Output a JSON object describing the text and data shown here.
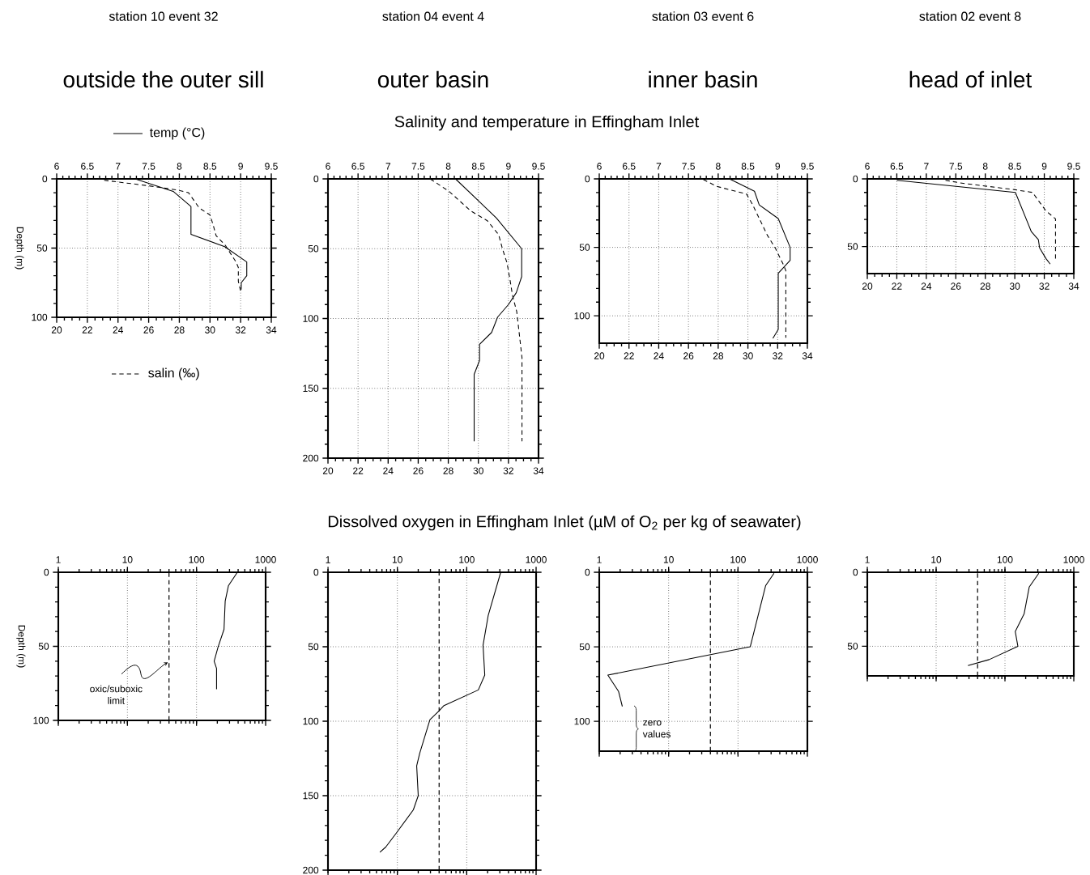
{
  "chart_data": [
    {
      "type": "line",
      "title": "station 10 event 32",
      "subtitle": "outside the outer sill",
      "ylabel": "Depth (m)",
      "annotations": [
        "Salinity and temperature in Effingham Inlet"
      ],
      "xlim": [
        20,
        34
      ],
      "xticks": [
        20,
        22,
        24,
        26,
        28,
        30,
        32,
        34
      ],
      "x2lim": [
        6,
        9.5
      ],
      "x2ticks": [
        6,
        6.5,
        7,
        7.5,
        8,
        8.5,
        9,
        9.5
      ],
      "ylim": [
        100,
        0
      ],
      "yticks": [
        0,
        50,
        100
      ],
      "grid": true,
      "legend": "left",
      "series": [
        {
          "name": "temp (°C)",
          "color": "#000000",
          "line_style": "solid",
          "axis": "x2",
          "x": [
            7.28,
            7.9,
            8.19,
            8.19,
            8.74,
            9.1,
            9.1,
            9.01,
            9.01
          ],
          "values": [
            0,
            9,
            20,
            40,
            49,
            60,
            70,
            75,
            80
          ]
        },
        {
          "name": "salin (‰)",
          "color": "#000000",
          "line_style": "dashed",
          "x": [
            23.1,
            26.0,
            27.85,
            28.6,
            29.3,
            30.0,
            30.2,
            30.4,
            31.0,
            31.7,
            31.85,
            31.85,
            32.0
          ],
          "values": [
            1,
            5,
            8,
            10,
            21,
            26,
            33,
            41,
            48,
            60,
            64,
            74,
            81
          ]
        }
      ]
    },
    {
      "type": "line",
      "title": "station 04 event 4",
      "subtitle": "outer basin",
      "xlim": [
        20,
        34
      ],
      "xticks": [
        20,
        22,
        24,
        26,
        28,
        30,
        32,
        34
      ],
      "x2lim": [
        6,
        9.5
      ],
      "x2ticks": [
        6,
        6.5,
        7,
        7.5,
        8,
        8.5,
        9,
        9.5
      ],
      "ylim": [
        200,
        0
      ],
      "yticks": [
        0,
        50,
        100,
        150,
        200
      ],
      "grid": true,
      "series": [
        {
          "color": "#000000",
          "line_style": "solid",
          "axis": "x2",
          "x": [
            8.12,
            8.52,
            8.8,
            9.22,
            9.22,
            9.13,
            9.0,
            8.82,
            8.72,
            8.52,
            8.52,
            8.43,
            8.43
          ],
          "values": [
            0,
            16.5,
            28,
            50,
            70,
            81.5,
            90,
            99,
            110,
            118.5,
            130,
            140,
            188
          ]
        },
        {
          "color": "#000000",
          "line_style": "dashed",
          "x": [
            26.8,
            28.06,
            29.5,
            30.6,
            31.35,
            31.6,
            31.9,
            32.1,
            32.27,
            32.55,
            32.7,
            32.9,
            32.9
          ],
          "values": [
            0,
            9,
            23,
            30,
            40,
            50,
            60,
            72,
            83.5,
            95,
            109,
            128,
            188
          ]
        }
      ]
    },
    {
      "type": "line",
      "title": "station 03 event 6",
      "subtitle": "inner basin",
      "xlim": [
        20,
        34
      ],
      "xticks": [
        20,
        22,
        24,
        26,
        28,
        30,
        32,
        34
      ],
      "x2lim": [
        6,
        9.5
      ],
      "x2ticks": [
        6,
        6.5,
        7,
        7.5,
        8,
        8.5,
        9,
        9.5
      ],
      "ylim": [
        120,
        0
      ],
      "yticks": [
        0,
        50,
        100
      ],
      "grid": true,
      "series": [
        {
          "color": "#000000",
          "line_style": "solid",
          "axis": "x2",
          "x": [
            8.19,
            8.61,
            8.69,
            9.01,
            9.21,
            9.21,
            9.01,
            9.01,
            8.92
          ],
          "values": [
            0,
            9,
            19,
            29,
            50,
            59.5,
            69,
            110,
            116.5
          ]
        },
        {
          "color": "#000000",
          "line_style": "dashed",
          "x": [
            27.0,
            27.9,
            29.9,
            30.3,
            31.3,
            31.85,
            32.4,
            32.55,
            32.55
          ],
          "values": [
            0.5,
            5.5,
            11,
            18.5,
            41,
            50.7,
            63,
            67,
            116
          ]
        }
      ]
    },
    {
      "type": "line",
      "title": "station 02 event 8",
      "subtitle": "head of inlet",
      "xlim": [
        20,
        34
      ],
      "xticks": [
        20,
        22,
        24,
        26,
        28,
        30,
        32,
        34
      ],
      "x2lim": [
        6,
        9.5
      ],
      "x2ticks": [
        6,
        6.5,
        7,
        7.5,
        8,
        8.5,
        9,
        9.5
      ],
      "ylim": [
        70,
        0
      ],
      "yticks": [
        0,
        50
      ],
      "grid": true,
      "series": [
        {
          "color": "#000000",
          "line_style": "solid",
          "axis": "x2",
          "x": [
            6.5,
            8.51,
            8.78,
            8.9,
            8.92,
            9.03,
            9.1
          ],
          "values": [
            1,
            10,
            39,
            45,
            51,
            59,
            63
          ]
        },
        {
          "color": "#000000",
          "line_style": "dashed",
          "x": [
            25.3,
            26.3,
            30.0,
            31.2,
            32.1,
            32.76,
            32.76
          ],
          "values": [
            1,
            3,
            8,
            10,
            23.5,
            29.5,
            60
          ]
        }
      ]
    },
    {
      "type": "line",
      "ylabel": "Depth (m)",
      "annotations": [
        "Dissolved oxygen in Effingham Inlet (µM of O$_{2}$ per kg of seawater)",
        {
          "text": "oxic/suboxic limit",
          "x": 40,
          "y": 60
        }
      ],
      "log": "x",
      "xlim": [
        1,
        1000
      ],
      "xticks": [
        1,
        10,
        100,
        1000
      ],
      "ylim": [
        100,
        0
      ],
      "yticks": [
        0,
        50,
        100
      ],
      "grid": true,
      "ref_lines": [
        {
          "axis": "x",
          "value": 40,
          "color": "#000000",
          "line_style": "dashed"
        }
      ],
      "series": [
        {
          "color": "#000000",
          "line_style": "solid",
          "x": [
            390,
            290,
            260,
            250,
            205,
            180,
            195,
            195
          ],
          "values": [
            0,
            9,
            19.5,
            38.5,
            50.5,
            60,
            65,
            79
          ]
        }
      ]
    },
    {
      "type": "line",
      "log": "x",
      "xlim": [
        1,
        1000
      ],
      "xticks": [
        1,
        10,
        100,
        1000
      ],
      "ylim": [
        200,
        0
      ],
      "yticks": [
        0,
        50,
        100,
        150,
        200
      ],
      "grid": true,
      "ref_lines": [
        {
          "axis": "x",
          "value": 40,
          "color": "#000000",
          "line_style": "dashed"
        }
      ],
      "series": [
        {
          "color": "#000000",
          "line_style": "solid",
          "x": [
            309,
            204,
            172,
            182,
            147,
            47,
            40,
            29.5,
            21,
            19,
            20,
            17,
            9.7,
            6.8,
            5.6
          ],
          "values": [
            0,
            29,
            49,
            69,
            79,
            89.5,
            93,
            99,
            121.5,
            130,
            150,
            159.5,
            175,
            184.5,
            188
          ]
        }
      ]
    },
    {
      "type": "line",
      "annotations": [
        "zero values"
      ],
      "log": "x",
      "xlim": [
        1,
        1000
      ],
      "xticks": [
        1,
        10,
        100,
        1000
      ],
      "ylim": [
        120,
        0
      ],
      "yticks": [
        0,
        50,
        100
      ],
      "grid": true,
      "ref_lines": [
        {
          "axis": "x",
          "value": 40,
          "color": "#000000",
          "line_style": "dashed"
        }
      ],
      "series": [
        {
          "color": "#000000",
          "line_style": "solid",
          "x": [
            330,
            250,
            150,
            1.33,
            1.9,
            2.15
          ],
          "values": [
            0.7,
            9,
            50,
            69,
            80,
            90
          ]
        }
      ]
    },
    {
      "type": "line",
      "log": "x",
      "xlim": [
        1,
        1000
      ],
      "xticks": [
        1,
        10,
        100,
        1000
      ],
      "ylim": [
        70,
        0
      ],
      "yticks": [
        0,
        50
      ],
      "grid": true,
      "ref_lines": [
        {
          "axis": "x",
          "value": 40,
          "color": "#000000",
          "line_style": "dashed"
        }
      ],
      "series": [
        {
          "color": "#000000",
          "line_style": "solid",
          "x": [
            310,
            225,
            190,
            141,
            154,
            59,
            29
          ],
          "values": [
            0.7,
            10,
            28,
            40,
            50,
            59,
            63
          ]
        }
      ]
    }
  ]
}
